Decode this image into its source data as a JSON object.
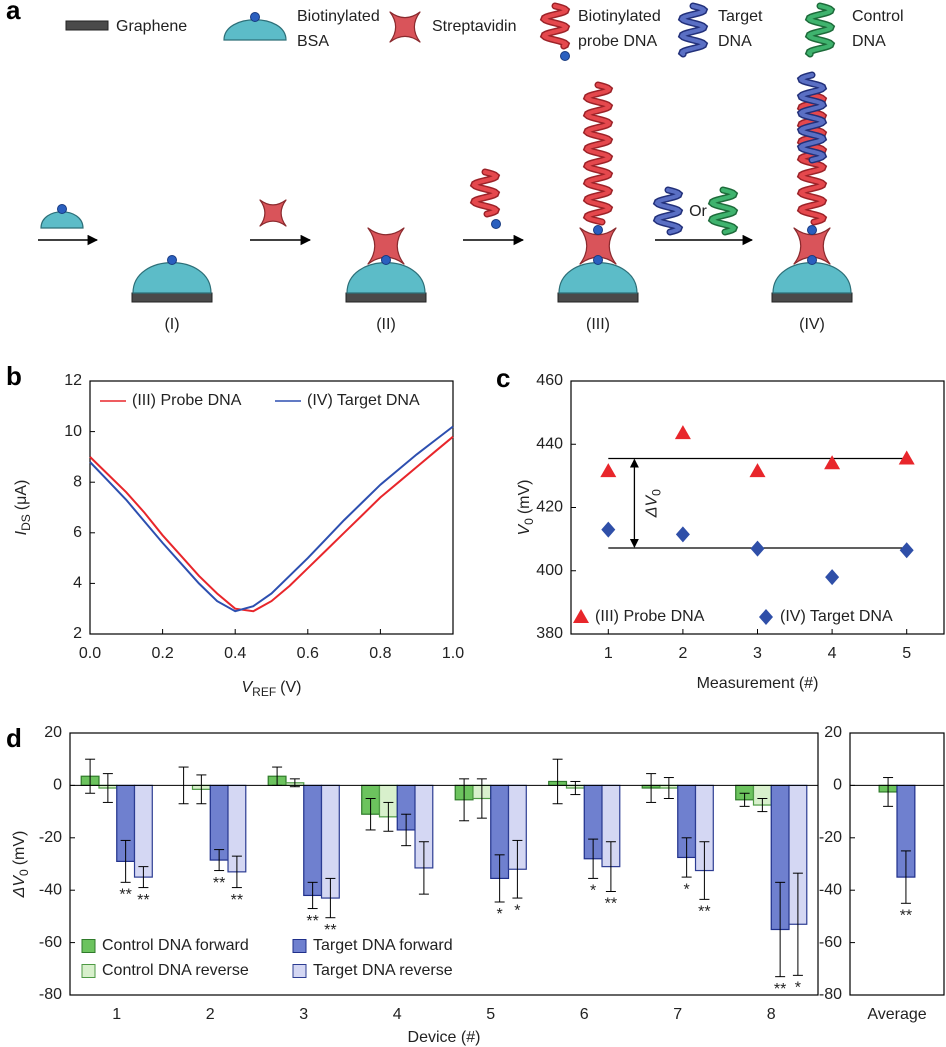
{
  "panel_labels": [
    "a",
    "b",
    "c",
    "d"
  ],
  "schematic": {
    "legend": [
      {
        "lines": [
          "Graphene"
        ]
      },
      {
        "lines": [
          "Biotinylated",
          "BSA"
        ]
      },
      {
        "lines": [
          "Streptavidin"
        ]
      },
      {
        "lines": [
          "Biotinylated",
          "probe DNA"
        ]
      },
      {
        "lines": [
          "Target",
          "DNA"
        ]
      },
      {
        "lines": [
          "Control",
          "DNA"
        ]
      }
    ],
    "stages": [
      "(I)",
      "(II)",
      "(III)",
      "(IV)"
    ],
    "or_label": "Or"
  },
  "chart_data": [
    {
      "type": "line",
      "xlabel": {
        "main": "V",
        "sub": "REF",
        "unit": "(V)"
      },
      "ylabel": {
        "main": "I",
        "sub": "DS",
        "unit": "(μA)"
      },
      "x": [
        0,
        0.05,
        0.1,
        0.15,
        0.2,
        0.25,
        0.3,
        0.35,
        0.4,
        0.45,
        0.5,
        0.55,
        0.6,
        0.65,
        0.7,
        0.75,
        0.8,
        0.85,
        0.9,
        0.95,
        1
      ],
      "series": [
        {
          "name": "(III) Probe DNA",
          "color": "#e8262b",
          "values": [
            9.0,
            8.3,
            7.6,
            6.8,
            5.9,
            5.1,
            4.3,
            3.6,
            3.0,
            2.9,
            3.3,
            3.9,
            4.6,
            5.3,
            6.0,
            6.7,
            7.4,
            8.0,
            8.6,
            9.2,
            9.8
          ]
        },
        {
          "name": "(IV) Target DNA",
          "color": "#2d4fb0",
          "values": [
            8.8,
            8.05,
            7.3,
            6.45,
            5.6,
            4.8,
            4.0,
            3.3,
            2.9,
            3.1,
            3.6,
            4.3,
            5.0,
            5.75,
            6.5,
            7.2,
            7.9,
            8.5,
            9.1,
            9.65,
            10.2
          ]
        }
      ],
      "xlim": [
        0,
        1
      ],
      "ylim": [
        2,
        12
      ],
      "xticks": [
        {
          "value": 0,
          "label": "0.0"
        },
        {
          "value": 0.2,
          "label": "0.2"
        },
        {
          "value": 0.4,
          "label": "0.4"
        },
        {
          "value": 0.6,
          "label": "0.6"
        },
        {
          "value": 0.8,
          "label": "0.8"
        },
        {
          "value": 1,
          "label": "1.0"
        }
      ],
      "yticks": [
        2,
        4,
        6,
        8,
        10,
        12
      ],
      "legend": "upper left"
    },
    {
      "type": "scatter",
      "xlabel": "Measurement (#)",
      "ylabel": {
        "main": "V",
        "sub": "0",
        "unit": "(mV)"
      },
      "x": [
        1,
        2,
        3,
        4,
        5
      ],
      "series": [
        {
          "name": "(III) Probe DNA",
          "color": "#e8262b",
          "marker": "triangle",
          "values": [
            431.5,
            443.5,
            431.5,
            434,
            435.5
          ]
        },
        {
          "name": "(IV) Target DNA",
          "color": "#2f4fa8",
          "marker": "diamond",
          "values": [
            413,
            411.5,
            407,
            398,
            406.5
          ]
        }
      ],
      "hlines": [
        435.5,
        407.2
      ],
      "annotation": {
        "main": "ΔV",
        "sub": "0"
      },
      "xlim": [
        0.5,
        5.5
      ],
      "ylim": [
        380,
        460
      ],
      "xticks": [
        1,
        2,
        3,
        4,
        5
      ],
      "yticks": [
        380,
        400,
        420,
        440,
        460
      ],
      "legend": "lower center"
    },
    {
      "type": "bar",
      "xlabel": "Device (#)",
      "ylabel": {
        "main": "ΔV",
        "sub": "0",
        "unit": "(mV)"
      },
      "categories": [
        "1",
        "2",
        "3",
        "4",
        "5",
        "6",
        "7",
        "8"
      ],
      "series": [
        {
          "name": "Control DNA forward",
          "color": "#6cc35e",
          "edgecolor": "#2f7a2a",
          "values": [
            3.5,
            0,
            3.5,
            -11,
            -5.5,
            1.5,
            -1,
            -5.5
          ],
          "errors": [
            6.5,
            7,
            3.5,
            6,
            8,
            8.5,
            5.5,
            2.5
          ],
          "annotations": [
            null,
            null,
            null,
            null,
            null,
            null,
            null,
            null
          ]
        },
        {
          "name": "Control DNA reverse",
          "color": "#d8f0cc",
          "edgecolor": "#4e9a44",
          "values": [
            -1,
            -1.5,
            1,
            -12,
            -5,
            -1,
            -1,
            -7.5
          ],
          "errors": [
            5.5,
            5.5,
            1.5,
            5.5,
            7.5,
            2.5,
            4,
            2.5
          ],
          "annotations": [
            null,
            null,
            null,
            null,
            null,
            null,
            null,
            null
          ]
        },
        {
          "name": "Target DNA forward",
          "color": "#6f80cf",
          "edgecolor": "#1f2f8a",
          "values": [
            -29,
            -28.5,
            -42,
            -17,
            -35.5,
            -28,
            -27.5,
            -55
          ],
          "errors": [
            8,
            4,
            5,
            6,
            9,
            7.5,
            7.5,
            18
          ],
          "annotations": [
            "**",
            "**",
            "**",
            null,
            "*",
            "*",
            "*",
            "**"
          ]
        },
        {
          "name": "Target DNA reverse",
          "color": "#d4d7f3",
          "edgecolor": "#2c3c92",
          "values": [
            -35,
            -33,
            -43,
            -31.5,
            -32,
            -31,
            -32.5,
            -53
          ],
          "errors": [
            4,
            6,
            7.5,
            10,
            11,
            9.5,
            11,
            19.5
          ],
          "annotations": [
            "**",
            "**",
            "**",
            null,
            "*",
            "**",
            "**",
            "*"
          ]
        }
      ],
      "ylim": [
        -80,
        20
      ],
      "yticks": [
        -80,
        -60,
        -40,
        -20,
        0,
        20
      ],
      "legend": "lower left"
    },
    {
      "type": "bar",
      "categories": [
        "Average"
      ],
      "series": [
        {
          "color": "#6cc35e",
          "edgecolor": "#2f7a2a",
          "values": [
            -2.5
          ],
          "errors": [
            5.5
          ],
          "annotations": [
            null
          ]
        },
        {
          "color": "#6f80cf",
          "edgecolor": "#1f2f8a",
          "values": [
            -35
          ],
          "errors": [
            10
          ],
          "annotations": [
            "**"
          ]
        }
      ],
      "ylim": [
        -80,
        20
      ],
      "yticks": [
        -80,
        -60,
        -40,
        -20,
        0,
        20
      ]
    }
  ]
}
